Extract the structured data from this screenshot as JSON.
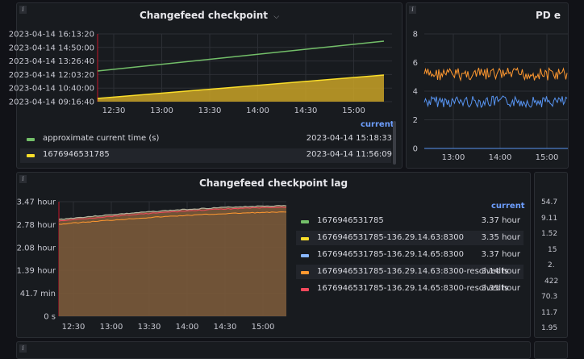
{
  "panels": {
    "checkpoint": {
      "title": "Changefeed checkpoint",
      "y_ticks": [
        "2023-04-14 16:13:20",
        "2023-04-14 14:50:00",
        "2023-04-14 13:26:40",
        "2023-04-14 12:03:20",
        "2023-04-14 10:40:00",
        "2023-04-14 09:16:40"
      ],
      "x_ticks": [
        "12:30",
        "13:00",
        "13:30",
        "14:00",
        "14:30",
        "15:00"
      ],
      "legend_header": "current",
      "legend": [
        {
          "name": "approximate current time (s)",
          "value": "2023-04-14 15:18:33",
          "color": "#73bf69"
        },
        {
          "name": "1676946531785",
          "value": "2023-04-14 11:56:09",
          "color": "#fade2a"
        }
      ]
    },
    "pd": {
      "title": "PD e",
      "y_ticks": [
        "8",
        "6",
        "4",
        "2",
        "0"
      ],
      "x_ticks": [
        "13:00",
        "14:00",
        "15:00"
      ]
    },
    "lag": {
      "title": "Changefeed checkpoint lag",
      "y_ticks": [
        "3.47 hour",
        "2.78 hour",
        "2.08 hour",
        "1.39 hour",
        "41.7 min",
        "0 s"
      ],
      "x_ticks": [
        "12:30",
        "13:00",
        "13:30",
        "14:00",
        "14:30",
        "15:00"
      ],
      "legend_header": "current",
      "legend": [
        {
          "name": "1676946531785",
          "value": "3.37 hour",
          "color": "#73bf69"
        },
        {
          "name": "1676946531785-136.29.14.63:8300",
          "value": "3.35 hour",
          "color": "#fade2a"
        },
        {
          "name": "1676946531785-136.29.14.65:8300",
          "value": "3.37 hour",
          "color": "#8ab8ff"
        },
        {
          "name": "1676946531785-136.29.14.63:8300-resolvedts",
          "value": "3.14 hour",
          "color": "#ff9830"
        },
        {
          "name": "1676946531785-136.29.14.65:8300-resolvedts",
          "value": "3.35 hour",
          "color": "#f2495c"
        }
      ]
    },
    "right_partial": {
      "values": [
        "54.7",
        "9.11",
        "1.52",
        "15",
        "2.",
        "422",
        "70.3",
        "11.7",
        "1.95"
      ]
    }
  },
  "icons": {
    "info": "i",
    "chevron": "⌵"
  }
}
